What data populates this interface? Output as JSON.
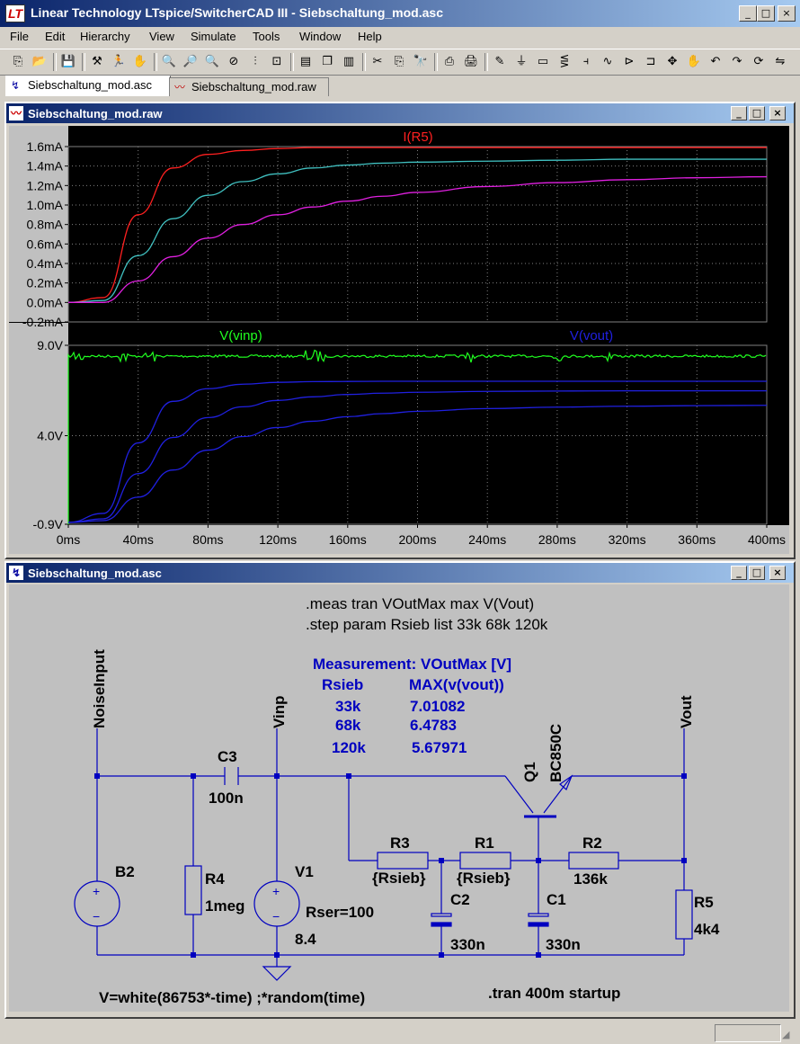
{
  "app": {
    "title": "Linear Technology LTspice/SwitcherCAD III - Siebschaltung_mod.asc",
    "logo": "LT",
    "window_buttons": {
      "minimize": "_",
      "maximize": "□",
      "close": "×"
    }
  },
  "menu": [
    "File",
    "Edit",
    "Hierarchy",
    "View",
    "Simulate",
    "Tools",
    "Window",
    "Help"
  ],
  "toolbar": {
    "icons": [
      "new-schematic-icon",
      "open-icon",
      "save-icon",
      "control-panel-icon",
      "run-icon",
      "halt-icon",
      "zoom-in-icon",
      "zoom-region-icon",
      "zoom-out-icon",
      "zoom-cancel-icon",
      "autorange-icon",
      "undo-zoom-icon",
      "tile-horizontal-icon",
      "cascade-icon",
      "tile-vertical-icon",
      "cut-icon",
      "copy-icon",
      "find-icon",
      "print-preview-icon",
      "print-icon",
      "draw-wire-icon",
      "ground-icon",
      "label-icon",
      "resistor-icon",
      "capacitor-icon",
      "inductor-icon",
      "diode-icon",
      "component-icon",
      "move-icon",
      "drag-icon",
      "undo-icon",
      "redo-icon",
      "rotate-icon",
      "mirror-icon"
    ],
    "glyphs": [
      "⎘",
      "📂",
      "💾",
      "⚒",
      "🏃",
      "✋",
      "🔍",
      "🔎",
      "🔍",
      "⊘",
      "⫶",
      "⊡",
      "▤",
      "❐",
      "▥",
      "✂",
      "⎘",
      "🔭",
      "⎙",
      "🖨",
      "✎",
      "⏚",
      "▭",
      "⋚",
      "⫞",
      "∿",
      "⊳",
      "⊐",
      "✥",
      "✋",
      "↶",
      "↷",
      "⟳",
      "⇋"
    ]
  },
  "doc_tabs": [
    {
      "label": "Siebschaltung_mod.asc",
      "icon": "schematic-icon",
      "glyph": "↯",
      "active": true
    },
    {
      "label": "Siebschaltung_mod.raw",
      "icon": "waveform-icon",
      "glyph": "〰",
      "active": false
    }
  ],
  "waveform_window": {
    "title": "Siebschaltung_mod.raw",
    "icon": "waveform-icon",
    "colors": {
      "background": "#000000",
      "grid": "#808080",
      "red": "#ff2020",
      "cyan": "#40c0c0",
      "magenta": "#e020e0",
      "green": "#20ff20",
      "blue": "#2020e0"
    }
  },
  "chart_data": [
    {
      "type": "line",
      "title": "",
      "trace_label": "I(R5)",
      "ylim": [
        -0.2,
        1.6
      ],
      "yticks": [
        "1.6mA",
        "1.4mA",
        "1.2mA",
        "1.0mA",
        "0.8mA",
        "0.6mA",
        "0.4mA",
        "0.2mA",
        "0.0mA",
        "-0.2mA"
      ],
      "ytick_values": [
        1.6,
        1.4,
        1.2,
        1.0,
        0.8,
        0.6,
        0.4,
        0.2,
        0.0,
        -0.2
      ],
      "x": [
        0,
        20,
        40,
        60,
        80,
        100,
        120,
        140,
        160,
        180,
        200,
        240,
        280,
        320,
        360,
        400
      ],
      "series": [
        {
          "color": "#ff2020",
          "values": [
            0,
            0.05,
            0.9,
            1.38,
            1.52,
            1.56,
            1.58,
            1.59,
            1.59,
            1.59,
            1.59,
            1.59,
            1.59,
            1.59,
            1.59,
            1.59
          ]
        },
        {
          "color": "#40c0c0",
          "values": [
            0,
            0.02,
            0.48,
            0.86,
            1.1,
            1.24,
            1.32,
            1.38,
            1.41,
            1.43,
            1.44,
            1.45,
            1.46,
            1.47,
            1.47,
            1.47
          ]
        },
        {
          "color": "#e020e0",
          "values": [
            0,
            0.0,
            0.22,
            0.47,
            0.66,
            0.8,
            0.9,
            0.98,
            1.04,
            1.09,
            1.13,
            1.19,
            1.23,
            1.26,
            1.28,
            1.29
          ]
        }
      ]
    },
    {
      "type": "line",
      "title": "",
      "trace_labels": [
        "V(vinp)",
        "V(vout)"
      ],
      "ylim": [
        -0.9,
        9.0
      ],
      "yticks": [
        "9.0V",
        "4.0V",
        "-0.9V"
      ],
      "ytick_values": [
        9.0,
        4.0,
        -0.9
      ],
      "x": [
        0,
        20,
        40,
        60,
        80,
        100,
        120,
        140,
        160,
        180,
        200,
        240,
        280,
        320,
        360,
        400
      ],
      "series": [
        {
          "name": "V(vinp)",
          "color": "#20ff20",
          "values": [
            8.4,
            8.4,
            8.4,
            8.4,
            8.4,
            8.4,
            8.4,
            8.4,
            8.4,
            8.4,
            8.4,
            8.4,
            8.4,
            8.4,
            8.4,
            8.4
          ]
        },
        {
          "color": "#2020e0",
          "values": [
            -0.8,
            -0.3,
            3.6,
            5.9,
            6.6,
            6.85,
            6.95,
            6.99,
            7.0,
            7.01,
            7.01,
            7.01,
            7.01,
            7.01,
            7.01,
            7.01
          ]
        },
        {
          "color": "#2020e0",
          "values": [
            -0.8,
            -0.6,
            1.9,
            3.9,
            5.0,
            5.6,
            5.95,
            6.15,
            6.28,
            6.35,
            6.4,
            6.45,
            6.47,
            6.48,
            6.48,
            6.48
          ]
        },
        {
          "color": "#2020e0",
          "values": [
            -0.8,
            -0.7,
            0.6,
            2.1,
            3.2,
            3.95,
            4.45,
            4.8,
            5.05,
            5.22,
            5.35,
            5.5,
            5.58,
            5.63,
            5.66,
            5.68
          ]
        }
      ],
      "xticks": [
        "0ms",
        "40ms",
        "80ms",
        "120ms",
        "160ms",
        "200ms",
        "240ms",
        "280ms",
        "320ms",
        "360ms",
        "400ms"
      ],
      "xlim": [
        0,
        400
      ]
    }
  ],
  "schematic_window": {
    "title": "Siebschaltung_mod.asc",
    "icon": "schematic-icon",
    "directives": [
      ".meas tran VOutMax max V(Vout)",
      ".step param Rsieb list 33k 68k 120k"
    ],
    "measurement": {
      "title": "Measurement: VOutMax  [V]",
      "col1": "Rsieb",
      "col2": "MAX(v(vout))",
      "rows": [
        [
          "33k",
          "7.01082"
        ],
        [
          "68k",
          "6.4783"
        ],
        [
          "120k",
          "5.67971"
        ]
      ]
    },
    "nets": {
      "noise": "NoiseInput",
      "vinp": "Vinp",
      "vout": "Vout"
    },
    "components": {
      "c3": {
        "name": "C3",
        "value": "100n"
      },
      "b2": {
        "name": "B2"
      },
      "r4": {
        "name": "R4",
        "value": "1meg"
      },
      "v1": {
        "name": "V1",
        "value": "8.4",
        "extra": "Rser=100"
      },
      "r3": {
        "name": "R3",
        "value": "{Rsieb}"
      },
      "r1": {
        "name": "R1",
        "value": "{Rsieb}"
      },
      "r2": {
        "name": "R2",
        "value": "136k"
      },
      "c2": {
        "name": "C2",
        "value": "330n"
      },
      "c1": {
        "name": "C1",
        "value": "330n"
      },
      "r5": {
        "name": "R5",
        "value": "4k4"
      },
      "q1": {
        "name": "Q1",
        "value": "BC850C"
      }
    },
    "b2_expr": "V=white(86753*-time) ;*random(time)",
    "tran": ".tran 400m startup"
  }
}
